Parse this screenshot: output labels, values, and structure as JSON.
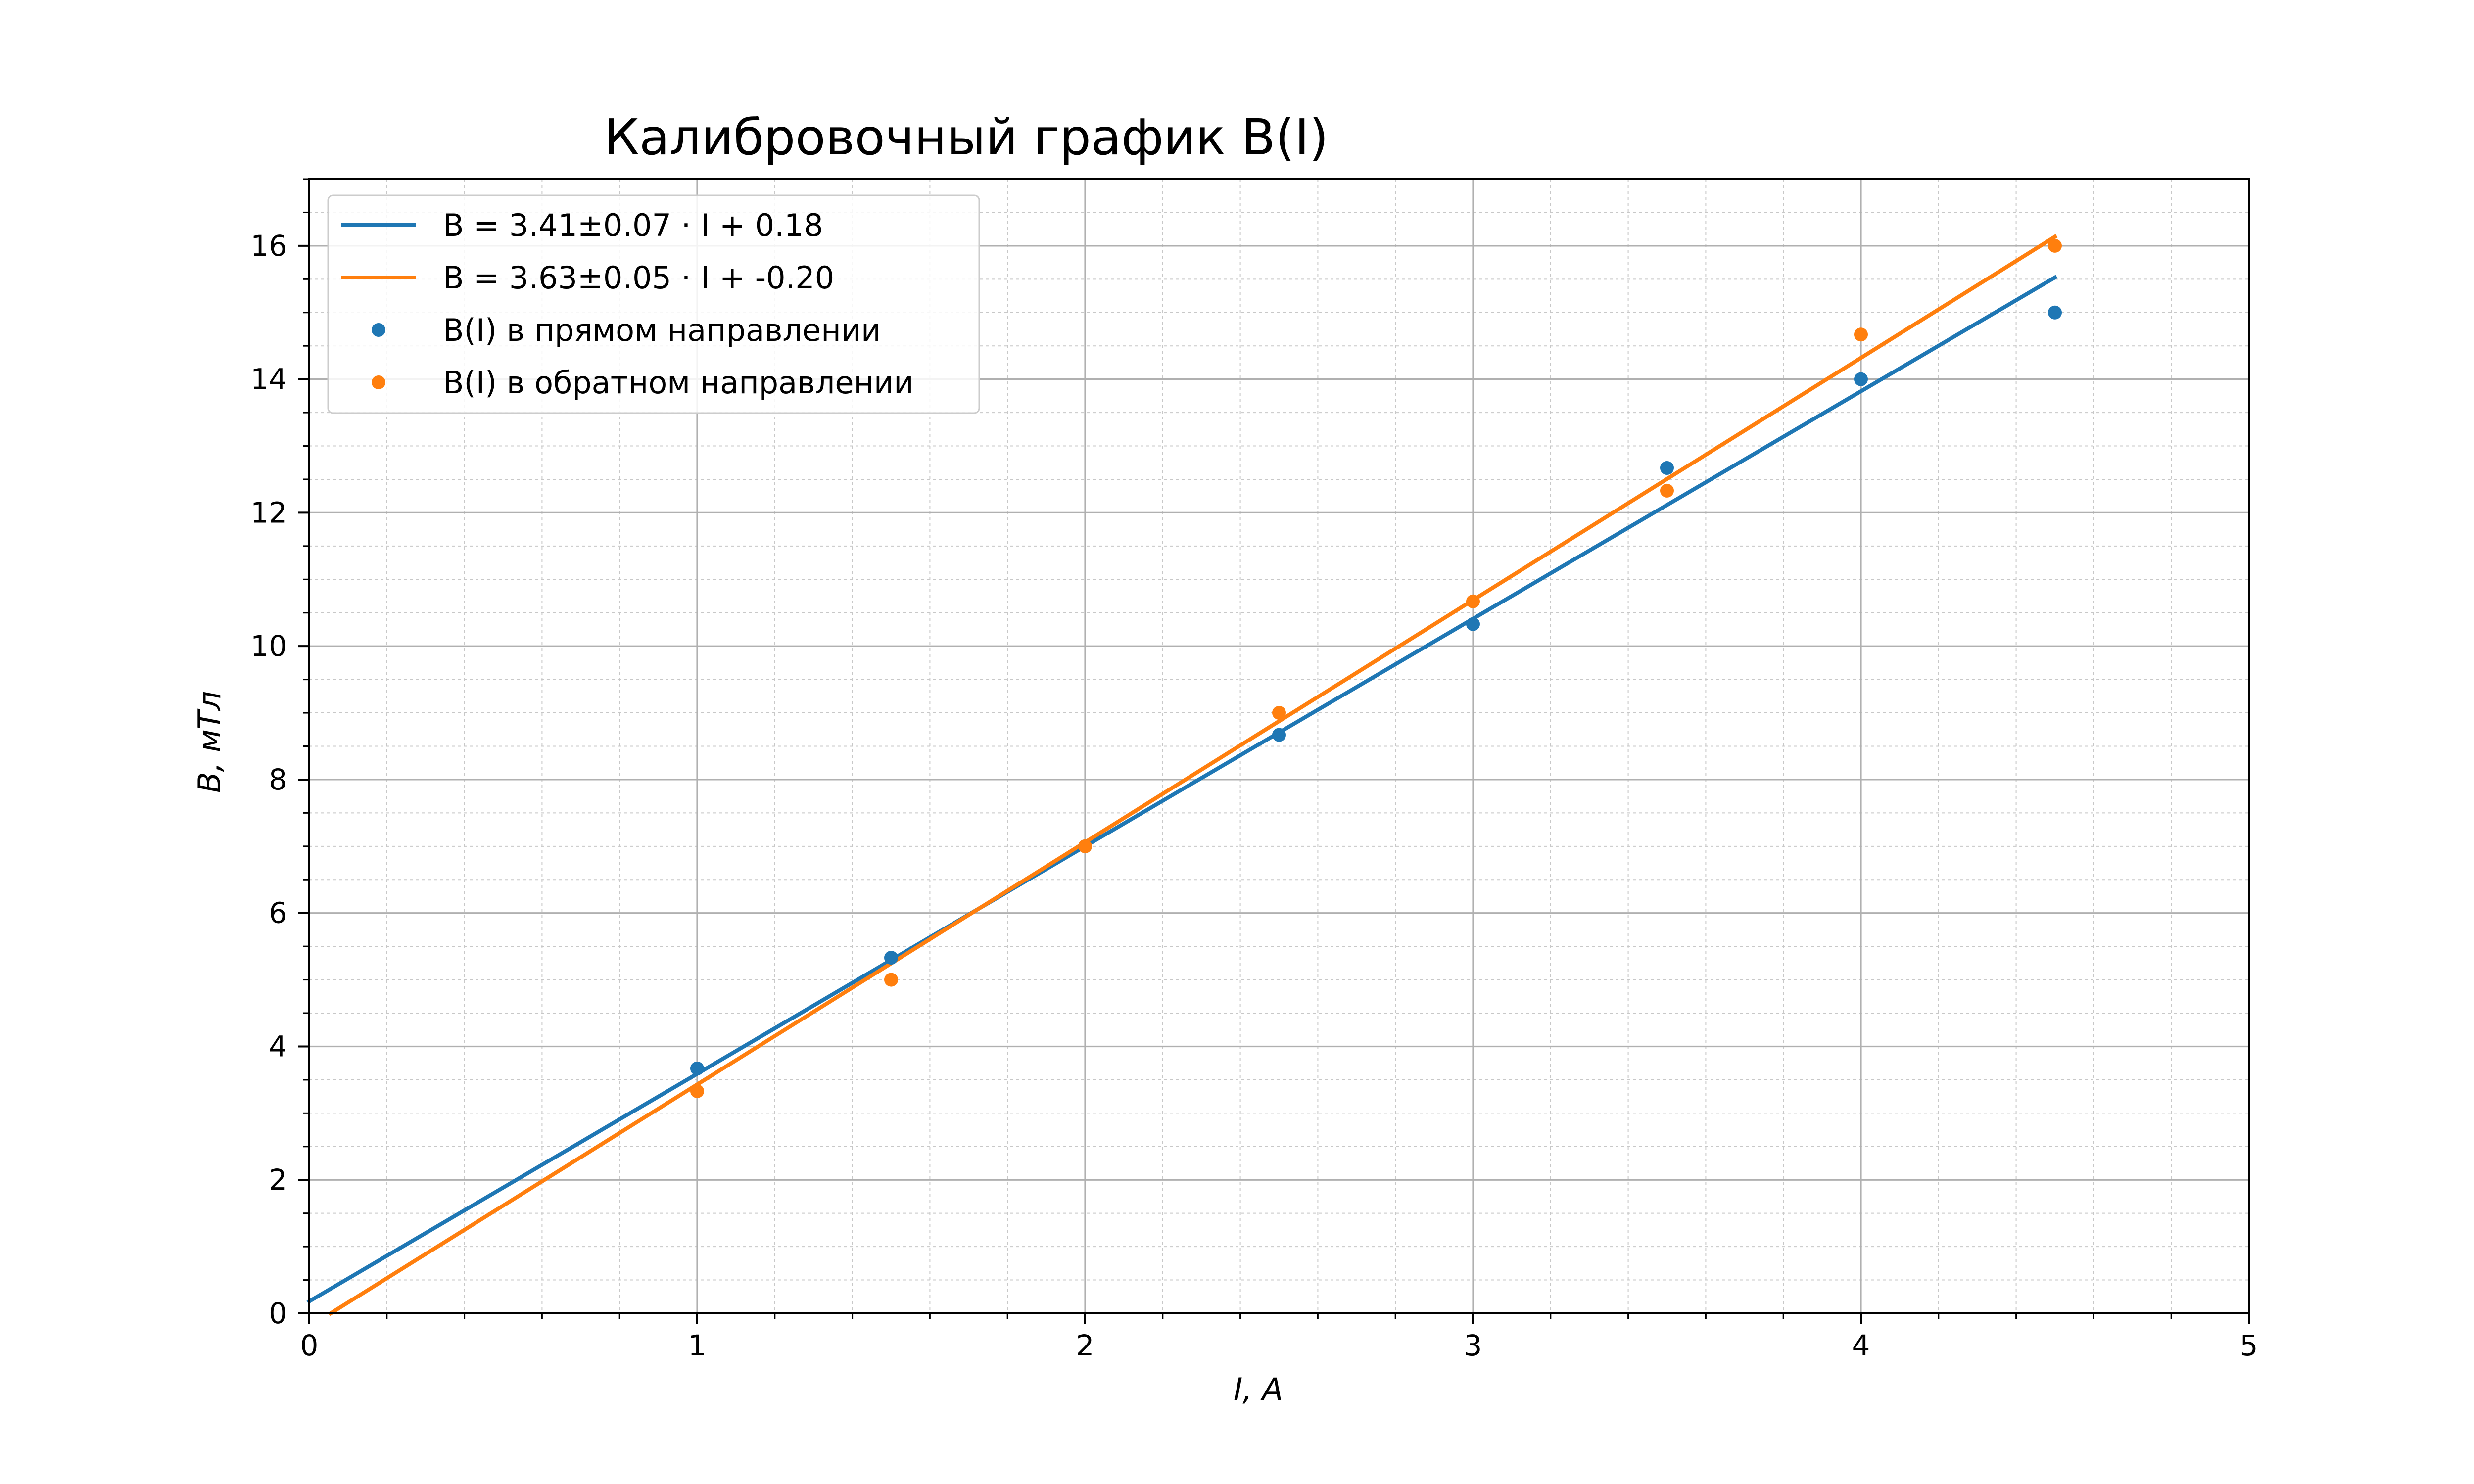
{
  "chart_data": {
    "type": "scatter",
    "title": "Калибровочный график B(I)",
    "xlabel": "I, A",
    "ylabel": "B, мТл",
    "xlim": [
      0,
      5
    ],
    "ylim": [
      0,
      17
    ],
    "x_ticks": [
      "0",
      "1",
      "2",
      "3",
      "4",
      "5"
    ],
    "y_ticks": [
      "0",
      "2",
      "4",
      "6",
      "8",
      "10",
      "12",
      "14",
      "16"
    ],
    "grid": true,
    "minor_grid": true,
    "legend_position": "top-left",
    "fit_lines": [
      {
        "name": "B = 3.41±0.07 · I + 0.18",
        "slope": 3.41,
        "intercept": 0.18,
        "x_range": [
          0,
          4.5
        ],
        "color": "#1f77b4"
      },
      {
        "name": "B = 3.63±0.05 · I + -0.20",
        "slope": 3.63,
        "intercept": -0.2,
        "x_range": [
          0,
          4.5
        ],
        "color": "#ff7f0e"
      }
    ],
    "series": [
      {
        "name": "B(I) в прямом направлении",
        "color": "#1f77b4",
        "x": [
          1.0,
          1.5,
          2.0,
          2.5,
          3.0,
          3.5,
          4.0,
          4.5
        ],
        "y": [
          3.67,
          5.33,
          7.0,
          8.67,
          10.33,
          12.67,
          14.0,
          15.0
        ]
      },
      {
        "name": "B(I) в обратном направлении",
        "color": "#ff7f0e",
        "x": [
          1.0,
          1.5,
          2.0,
          2.5,
          3.0,
          3.5,
          4.0,
          4.5
        ],
        "y": [
          3.33,
          5.0,
          7.0,
          9.0,
          10.67,
          12.33,
          14.67,
          16.0
        ]
      }
    ]
  }
}
